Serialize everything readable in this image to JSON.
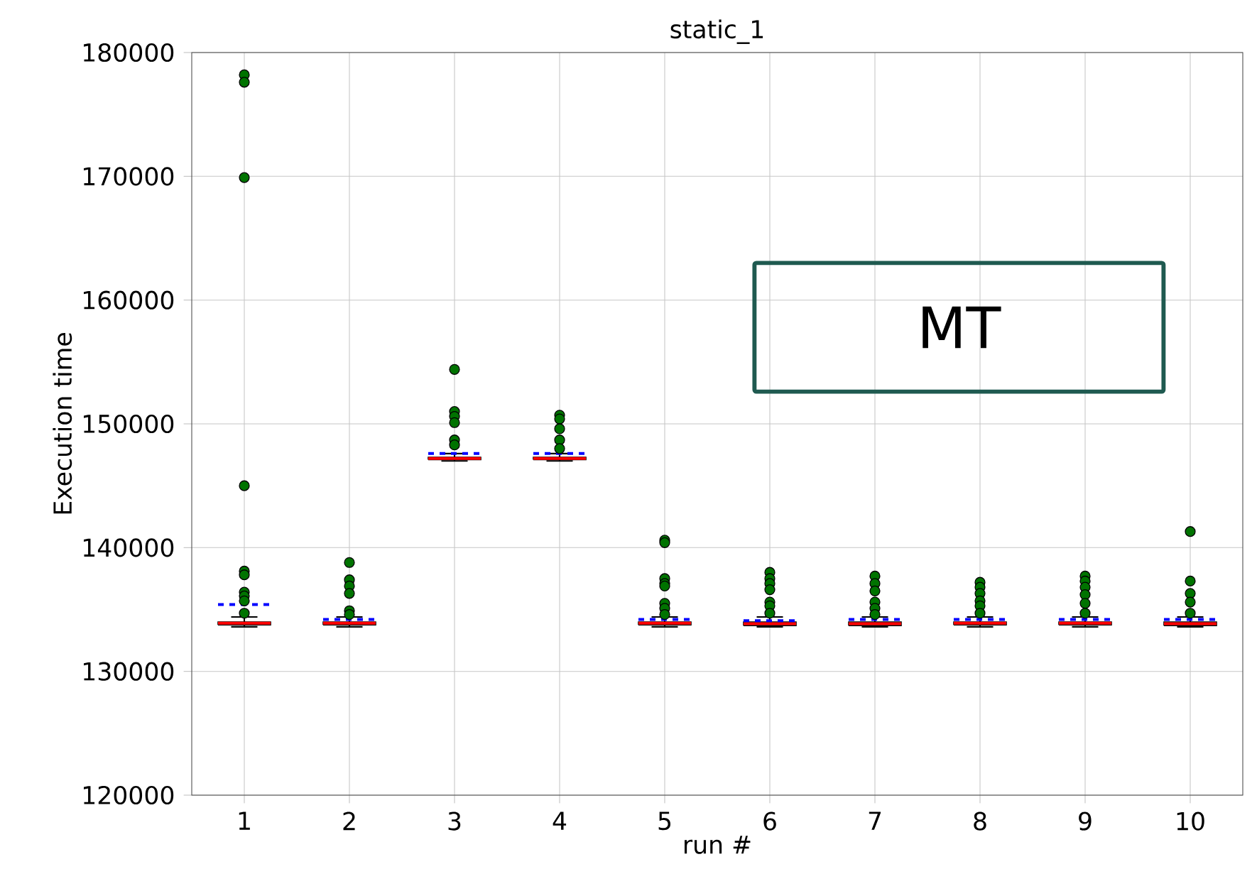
{
  "chart_data": {
    "type": "box",
    "title": "static_1",
    "xlabel": "run #",
    "ylabel": "Execution time",
    "categories": [
      "1",
      "2",
      "3",
      "4",
      "5",
      "6",
      "7",
      "8",
      "9",
      "10"
    ],
    "boxes": [
      {
        "low": 133600,
        "q1": 133750,
        "median": 133900,
        "q3": 134000,
        "high": 134400,
        "mean": 135400,
        "outliers": [
          178200,
          177600,
          169900,
          145000,
          138100,
          137800,
          136400,
          136100,
          135700,
          134700
        ]
      },
      {
        "low": 133600,
        "q1": 133750,
        "median": 133900,
        "q3": 134000,
        "high": 134400,
        "mean": 134200,
        "outliers": [
          138800,
          137400,
          136900,
          136300,
          134900,
          134600
        ]
      },
      {
        "low": 147000,
        "q1": 147100,
        "median": 147200,
        "q3": 147300,
        "high": 147600,
        "mean": 147600,
        "outliers": [
          154400,
          151000,
          150600,
          150100,
          148700,
          148300
        ]
      },
      {
        "low": 147000,
        "q1": 147100,
        "median": 147200,
        "q3": 147300,
        "high": 147600,
        "mean": 147600,
        "outliers": [
          150700,
          150400,
          149600,
          148700,
          148000
        ]
      },
      {
        "low": 133600,
        "q1": 133750,
        "median": 133900,
        "q3": 134000,
        "high": 134400,
        "mean": 134200,
        "outliers": [
          140600,
          140400,
          137500,
          137100,
          136900,
          135500,
          135100,
          134600
        ]
      },
      {
        "low": 133600,
        "q1": 133700,
        "median": 133850,
        "q3": 134000,
        "high": 134400,
        "mean": 134100,
        "outliers": [
          138000,
          137500,
          137100,
          136600,
          135600,
          135300,
          134700
        ]
      },
      {
        "low": 133600,
        "q1": 133700,
        "median": 133850,
        "q3": 134000,
        "high": 134400,
        "mean": 134200,
        "outliers": [
          137700,
          137100,
          136500,
          135600,
          135100,
          134600
        ]
      },
      {
        "low": 133600,
        "q1": 133750,
        "median": 133900,
        "q3": 134000,
        "high": 134400,
        "mean": 134200,
        "outliers": [
          137200,
          136800,
          136300,
          135700,
          135300,
          134700
        ]
      },
      {
        "low": 133600,
        "q1": 133750,
        "median": 133900,
        "q3": 134000,
        "high": 134400,
        "mean": 134200,
        "outliers": [
          137700,
          137300,
          136800,
          136200,
          135500,
          134700
        ]
      },
      {
        "low": 133600,
        "q1": 133700,
        "median": 133850,
        "q3": 134000,
        "high": 134400,
        "mean": 134200,
        "outliers": [
          141300,
          137300,
          136300,
          135600,
          134700
        ]
      }
    ],
    "ylim": [
      120000,
      180000
    ],
    "yticks": [
      120000,
      130000,
      140000,
      150000,
      160000,
      170000,
      180000
    ],
    "grid": true,
    "annotations": [
      "MT"
    ]
  }
}
